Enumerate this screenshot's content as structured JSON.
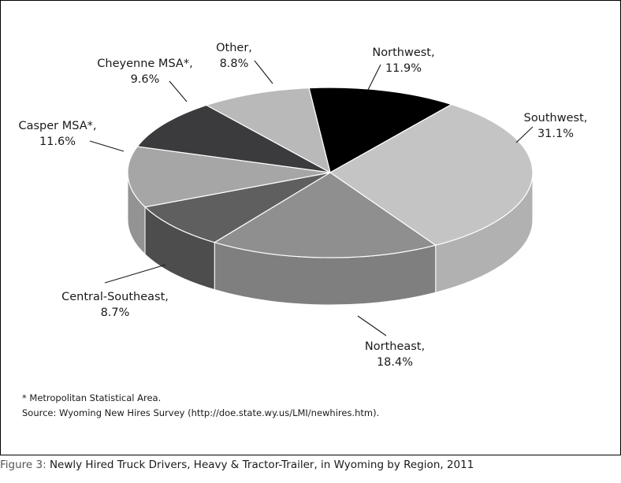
{
  "chart_data": {
    "type": "pie",
    "title": "Newly Hired Truck Drivers, Heavy & Tractor-Trailer, in Wyoming by Region, 2011",
    "slices": [
      {
        "label": "Northwest",
        "value": 11.9,
        "value_label": "11.9%",
        "color": "#000000",
        "side_color": "#000000"
      },
      {
        "label": "Southwest",
        "value": 31.1,
        "value_label": "31.1%",
        "color": "#c4c4c4",
        "side_color": "#b1b1b1"
      },
      {
        "label": "Northeast",
        "value": 18.4,
        "value_label": "18.4%",
        "color": "#8f8f8f",
        "side_color": "#7f7f7f"
      },
      {
        "label": "Central-Southeast",
        "value": 8.7,
        "value_label": "8.7%",
        "color": "#5f5f5f",
        "side_color": "#4d4d4d"
      },
      {
        "label": "Casper MSA*",
        "value": 11.6,
        "value_label": "11.6%",
        "color": "#a6a6a6",
        "side_color": "#939393"
      },
      {
        "label": "Cheyenne MSA*",
        "value": 9.6,
        "value_label": "9.6%",
        "color": "#3b3b3d",
        "side_color": "#2e2e30"
      },
      {
        "label": "Other",
        "value": 8.8,
        "value_label": "8.8%",
        "color": "#b9b9b9",
        "side_color": "#a5a5a5"
      }
    ]
  },
  "notes": {
    "footnote": "* Metropolitan Statistical Area.",
    "source": "Source: Wyoming New Hires Survey (http://doe.state.wy.us/LMI/newhires.htm)."
  },
  "caption": {
    "figure_label": "Figure 3:",
    "title": "Newly Hired Truck Drivers, Heavy & Tractor-Trailer, in Wyoming by Region, 2011"
  }
}
